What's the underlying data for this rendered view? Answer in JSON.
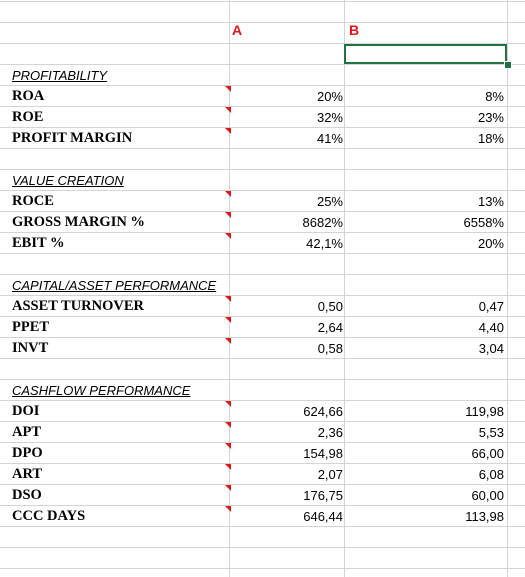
{
  "columns": {
    "a": "A",
    "b": "B"
  },
  "rows": [
    {
      "type": "blank"
    },
    {
      "type": "blank"
    },
    {
      "type": "section",
      "label": "PROFITABILITY",
      "a": "",
      "b": ""
    },
    {
      "type": "metric",
      "label": "ROA",
      "a": "20%",
      "b": "8%",
      "comment": true
    },
    {
      "type": "metric",
      "label": "ROE",
      "a": "32%",
      "b": "23%",
      "comment": true
    },
    {
      "type": "metric",
      "label": "PROFIT MARGIN",
      "a": "41%",
      "b": "18%",
      "comment": true
    },
    {
      "type": "blank"
    },
    {
      "type": "section",
      "label": "VALUE CREATION",
      "a": "",
      "b": ""
    },
    {
      "type": "metric",
      "label": "ROCE",
      "a": "25%",
      "b": "13%",
      "comment": true
    },
    {
      "type": "metric",
      "label": "GROSS MARGIN %",
      "a": "8682%",
      "b": "6558%",
      "comment": true
    },
    {
      "type": "metric",
      "label": "EBIT %",
      "a": "42,1%",
      "b": "20%",
      "comment": true
    },
    {
      "type": "blank"
    },
    {
      "type": "section",
      "label": "CAPITAL/ASSET PERFORMANCE",
      "a": "",
      "b": ""
    },
    {
      "type": "metric",
      "label": "ASSET TURNOVER",
      "a": "0,50",
      "b": "0,47",
      "comment": true
    },
    {
      "type": "metric",
      "label": "PPET",
      "a": "2,64",
      "b": "4,40",
      "comment": true
    },
    {
      "type": "metric",
      "label": "INVT",
      "a": "0,58",
      "b": "3,04",
      "comment": true
    },
    {
      "type": "blank"
    },
    {
      "type": "section",
      "label": "CASHFLOW PERFORMANCE",
      "a": "",
      "b": ""
    },
    {
      "type": "metric",
      "label": "DOI",
      "a": "624,66",
      "b": "119,98",
      "comment": true
    },
    {
      "type": "metric",
      "label": "APT",
      "a": "2,36",
      "b": "5,53",
      "comment": true
    },
    {
      "type": "metric",
      "label": "DPO",
      "a": "154,98",
      "b": "66,00",
      "comment": true
    },
    {
      "type": "metric",
      "label": "ART",
      "a": "2,07",
      "b": "6,08",
      "comment": true
    },
    {
      "type": "metric",
      "label": "DSO",
      "a": "176,75",
      "b": "60,00",
      "comment": true
    },
    {
      "type": "metric",
      "label": "CCC DAYS",
      "a": "646,44",
      "b": "113,98",
      "comment": true
    }
  ],
  "colors": {
    "grid": "#d4d4d4",
    "header": "#e0161b",
    "selection": "#217346",
    "comment_marker": "#e0161b"
  }
}
